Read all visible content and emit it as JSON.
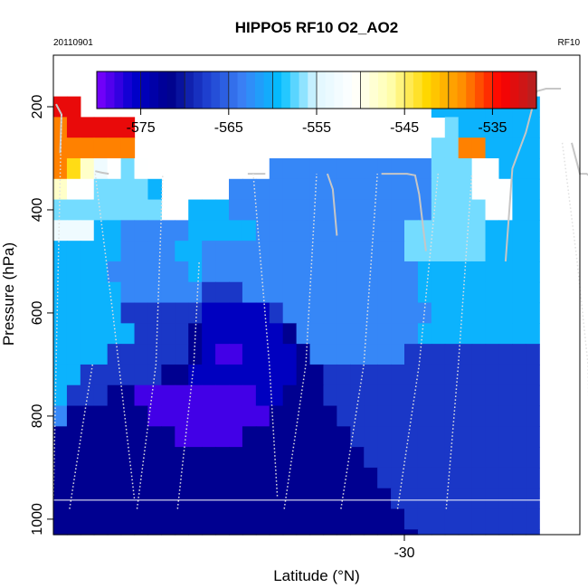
{
  "chart_data": {
    "type": "heatmap",
    "title": "HIPPO5 RF10 O2_AO2",
    "date_label": "20110901",
    "flight_label": "RF10",
    "xlabel": "Latitude (°N)",
    "ylabel": "Pressure (hPa)",
    "xlim": [
      -56,
      -17
    ],
    "ylim": [
      1030,
      100
    ],
    "xticks": [
      -30
    ],
    "yticks": [
      200,
      400,
      600,
      800,
      1000
    ],
    "colorbar": {
      "range": [
        -580,
        -530
      ],
      "ticks": [
        -575,
        -565,
        -555,
        -545,
        -535
      ],
      "colors": [
        "#7f00ff",
        "#0000cd",
        "#00008b",
        "#1e3fcf",
        "#3b82f6",
        "#00bfff",
        "#e0f7ff",
        "#ffffff",
        "#ffffb0",
        "#ffd700",
        "#ff8c00",
        "#ff0000",
        "#b22222"
      ]
    },
    "grid_lat_start": -56,
    "grid_lat_step": 1,
    "grid_p_start": 100,
    "grid_p_step": 40,
    "grid_rows": [
      "...................................",
      "...................................",
      "RR..........................CCCCCCCC",
      "TRRRRR.......................SCCCCCC",
      "TTTTTT......................SSTTCCCC",
      "TOKLWSW.........BBBBBBBBBBBBSSSWWCCC",
      "KWWSSSSC.....BBBBBBBBBBBBBBBSSSWWWCC",
      "SSSSSSSS..CCCBBBBBBBBBBBBBBBSSSSWWCC",
      "LLLCCBBBBBCCCCCBBBBBBBBBBBSSSSSSCCCC",
      "CCCCCBBBBCCBBBBBBBBBBBBBBBSSSSSSCCCC",
      "CCCCBBBBBBCBBBBBBBBBBBBBBBBCCCCCCCCC",
      "CCCCCBBBBBBMMMBBBBBBBBBBBBBCCCCCCCCC",
      "CCCCCMMMMMMDDDDDMBBBBBBBBBBBCCCCCCCC",
      "CCCCCCMMMMNDDDDDDNBBBBBBBBBCCCCCCCCC",
      "CCCCMMMMMMNDVVDDDDNBBBBBBBMMMMMMMMMM",
      "CCMMMMMMNNDDDDDDDDNNMMMMMMMMMMMMMMMM",
      "CMMMNNVVVVVVVVVDDNNNMMMMMMMMMMMMMMMM",
      "BNNNNNNVVVVVVVVVNNNNNMMMMMMMMMMMMMMM",
      "NNNNNNNNNVVVVVNNNNNNNNMMMMMMMMMMMMMM",
      "NNNNNNNNNNNNNNNNNNNNNNNMMMMMMMMMMMMM",
      "NNNNNNNNNNNNNNNNNNNNNNNNMMMMMMMMMMMM",
      "NNNNNNNNNNNNNNNNNNNNNNNNNMMMMMMMMMMM",
      "NNNNNNNNNNNNNNNNNNNNNNNNNNMMMMMMMMMM",
      "NNNNNNNNNNNNNNNNNNNNNNNNNNNMMMMMMMMM"
    ],
    "cell_values": {
      "V": -578,
      "D": -575,
      "N": -572,
      "M": -568,
      "B": -563,
      "C": -560,
      "S": -557,
      "L": -553,
      "W": -551,
      "K": -548,
      "Y": -546,
      "O": -543,
      "T": -538,
      "R": -533
    },
    "flight_track": {
      "solid_segments": [
        [
          [
            -55.8,
            195
          ],
          [
            -55.4,
            215
          ],
          [
            -55.5,
            290
          ]
        ],
        [
          [
            -52.9,
            325
          ],
          [
            -52.4,
            328
          ],
          [
            -51.9,
            330
          ]
        ],
        [
          [
            -41.6,
            330
          ],
          [
            -40.7,
            330
          ],
          [
            -40.3,
            330
          ]
        ],
        [
          [
            -35.7,
            330
          ],
          [
            -35.3,
            360
          ],
          [
            -35.0,
            450
          ]
        ],
        [
          [
            -31.7,
            330
          ],
          [
            -30.8,
            330
          ],
          [
            -29.8,
            330
          ],
          [
            -29.2,
            333
          ],
          [
            -28.9,
            370
          ],
          [
            -28.4,
            480
          ]
        ],
        [
          [
            -22.5,
            500
          ],
          [
            -22.0,
            320
          ],
          [
            -21.0,
            250
          ],
          [
            -20.2,
            170
          ],
          [
            -19.5,
            165
          ],
          [
            -18.4,
            165
          ]
        ],
        [
          [
            -17.6,
            270
          ],
          [
            -17.0,
            330
          ],
          [
            -16.5,
            330
          ],
          [
            -16.0,
            340
          ],
          [
            -15.6,
            400
          ]
        ]
      ],
      "dotted_segments": [
        [
          [
            -55.4,
            215
          ],
          [
            -55.8,
            700
          ],
          [
            -56.0,
            960
          ]
        ],
        [
          [
            -54.8,
            980
          ],
          [
            -53.9,
            830
          ],
          [
            -53.1,
            700
          ]
        ],
        [
          [
            -52.9,
            330
          ],
          [
            -51.6,
            600
          ],
          [
            -50.0,
            960
          ]
        ],
        [
          [
            -49.8,
            980
          ],
          [
            -48.4,
            700
          ],
          [
            -47.9,
            330
          ]
        ],
        [
          [
            -46.8,
            980
          ],
          [
            -45.6,
            700
          ],
          [
            -45.2,
            500
          ]
        ],
        [
          [
            -41.2,
            330
          ],
          [
            -40.0,
            700
          ],
          [
            -39.4,
            960
          ]
        ],
        [
          [
            -38.9,
            980
          ],
          [
            -37.3,
            700
          ],
          [
            -36.5,
            330
          ]
        ],
        [
          [
            -34.7,
            980
          ],
          [
            -33.0,
            700
          ],
          [
            -32.0,
            330
          ]
        ],
        [
          [
            -30.5,
            980
          ],
          [
            -28.9,
            700
          ],
          [
            -27.5,
            330
          ]
        ],
        [
          [
            -26.9,
            980
          ],
          [
            -26.0,
            700
          ],
          [
            -25.0,
            330
          ]
        ],
        [
          [
            -18.3,
            270
          ],
          [
            -17.2,
            500
          ],
          [
            -16.4,
            700
          ],
          [
            -16.2,
            960
          ]
        ]
      ]
    },
    "reference_line_pressure": 963
  }
}
